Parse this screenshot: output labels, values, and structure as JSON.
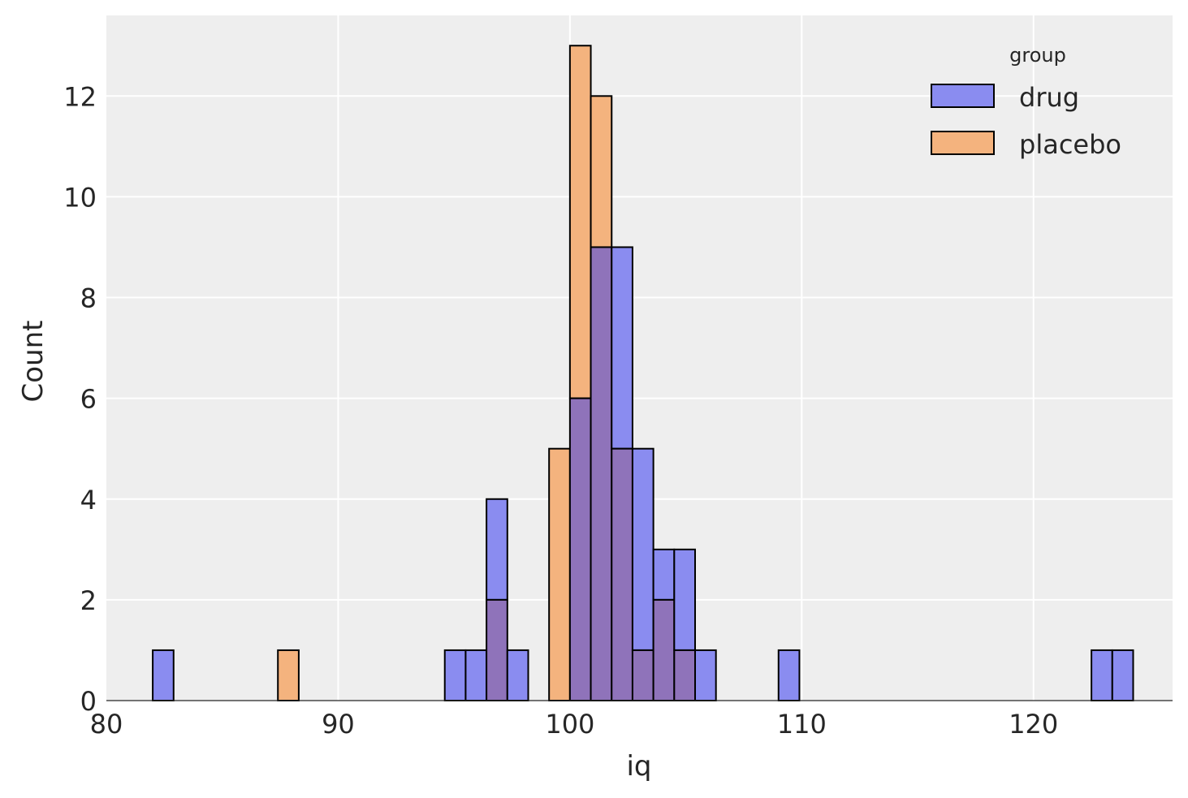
{
  "chart_data": {
    "type": "bar",
    "subtype": "histogram",
    "xlabel": "iq",
    "ylabel": "Count",
    "xlim": [
      80,
      126
    ],
    "ylim": [
      0,
      13.6
    ],
    "xticks": [
      80,
      90,
      100,
      110,
      120
    ],
    "yticks": [
      0,
      2,
      4,
      6,
      8,
      10,
      12
    ],
    "grid": true,
    "legend": {
      "title": "group",
      "placement": "top-right",
      "entries": [
        "drug",
        "placebo"
      ]
    },
    "bin_width": 0.9,
    "series": [
      {
        "name": "drug",
        "color": "#6a6cf0",
        "bins": [
          {
            "x0": 82.0,
            "x1": 82.9,
            "count": 1
          },
          {
            "x0": 94.6,
            "x1": 95.5,
            "count": 1
          },
          {
            "x0": 95.5,
            "x1": 96.4,
            "count": 1
          },
          {
            "x0": 96.4,
            "x1": 97.3,
            "count": 4
          },
          {
            "x0": 97.3,
            "x1": 98.2,
            "count": 1
          },
          {
            "x0": 100.0,
            "x1": 100.9,
            "count": 6
          },
          {
            "x0": 100.9,
            "x1": 101.8,
            "count": 9
          },
          {
            "x0": 101.8,
            "x1": 102.7,
            "count": 9
          },
          {
            "x0": 102.7,
            "x1": 103.6,
            "count": 5
          },
          {
            "x0": 103.6,
            "x1": 104.5,
            "count": 3
          },
          {
            "x0": 104.5,
            "x1": 105.4,
            "count": 3
          },
          {
            "x0": 105.4,
            "x1": 106.3,
            "count": 1
          },
          {
            "x0": 109.0,
            "x1": 109.9,
            "count": 1
          },
          {
            "x0": 122.5,
            "x1": 123.4,
            "count": 1
          },
          {
            "x0": 123.4,
            "x1": 124.3,
            "count": 1
          }
        ]
      },
      {
        "name": "placebo",
        "color": "#f4a460",
        "bins": [
          {
            "x0": 87.4,
            "x1": 88.3,
            "count": 1
          },
          {
            "x0": 96.4,
            "x1": 97.3,
            "count": 2
          },
          {
            "x0": 99.1,
            "x1": 100.0,
            "count": 5
          },
          {
            "x0": 100.0,
            "x1": 100.9,
            "count": 13
          },
          {
            "x0": 100.9,
            "x1": 101.8,
            "count": 12
          },
          {
            "x0": 101.8,
            "x1": 102.7,
            "count": 5
          },
          {
            "x0": 102.7,
            "x1": 103.6,
            "count": 1
          },
          {
            "x0": 103.6,
            "x1": 104.5,
            "count": 2
          },
          {
            "x0": 104.5,
            "x1": 105.4,
            "count": 1
          }
        ]
      }
    ],
    "overlap_color": "#8f73ba"
  }
}
